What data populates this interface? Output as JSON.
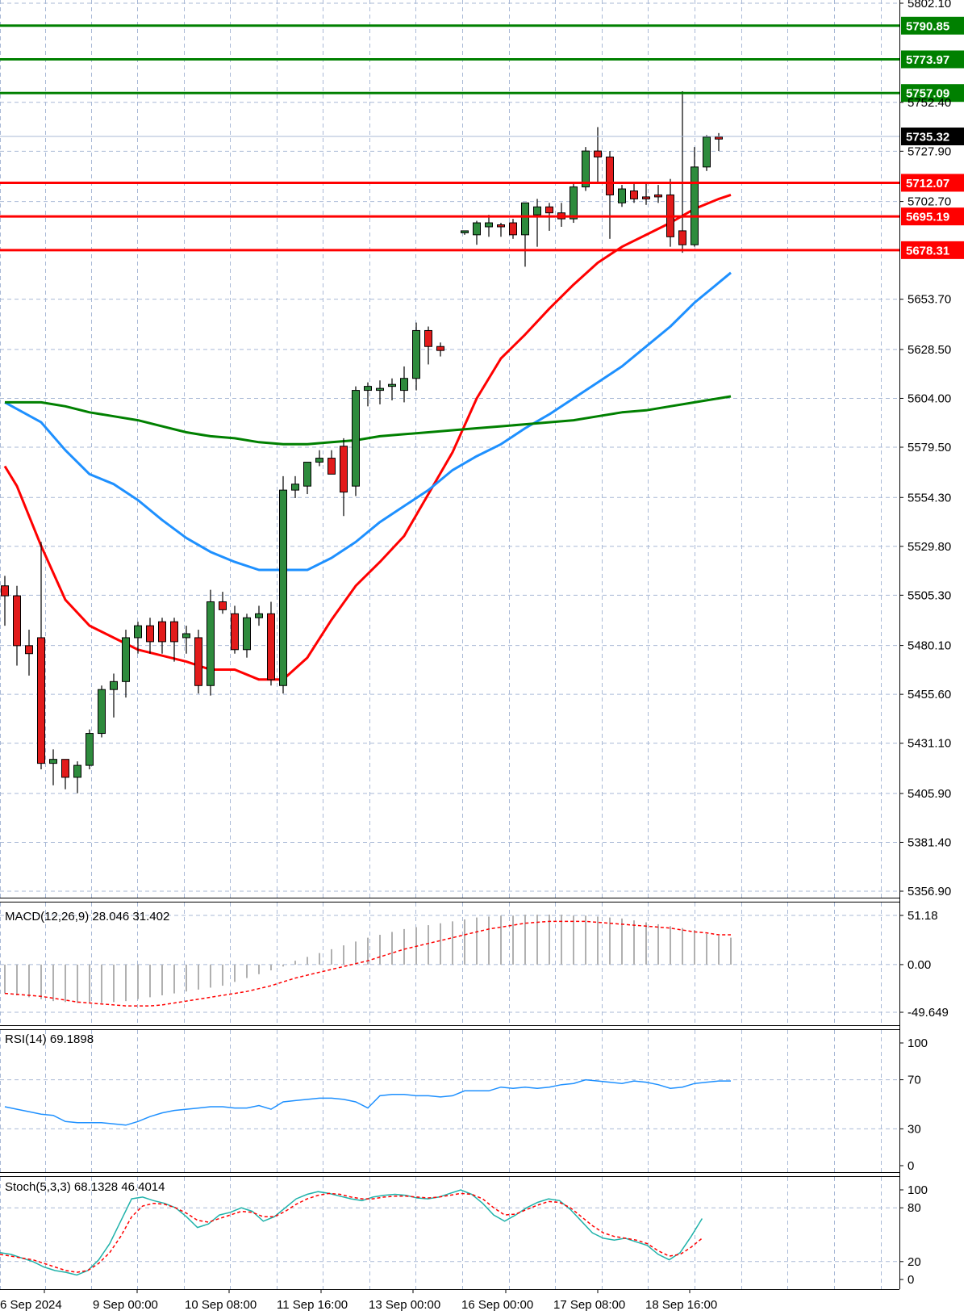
{
  "chart_data": {
    "type": "candlestick",
    "price_axis": {
      "ylim": [
        5356.9,
        5802.1
      ],
      "ticks": [
        "5802.10",
        "5752.40",
        "5727.90",
        "5702.70",
        "5653.70",
        "5628.50",
        "5604.00",
        "5579.50",
        "5554.30",
        "5529.80",
        "5505.30",
        "5480.10",
        "5455.60",
        "5431.10",
        "5405.90",
        "5381.40",
        "5356.90"
      ]
    },
    "current_price": "5735.32",
    "levels": [
      {
        "value": "5790.85",
        "color": "#008000"
      },
      {
        "value": "5773.97",
        "color": "#008000"
      },
      {
        "value": "5757.09",
        "color": "#008000"
      },
      {
        "value": "5712.07",
        "color": "#ff0000"
      },
      {
        "value": "5695.19",
        "color": "#ff0000"
      },
      {
        "value": "5678.31",
        "color": "#ff0000"
      }
    ],
    "time_axis": [
      "6 Sep 2024",
      "9 Sep 00:00",
      "10 Sep 08:00",
      "11 Sep 16:00",
      "13 Sep 00:00",
      "16 Sep 00:00",
      "17 Sep 08:00",
      "18 Sep 16:00"
    ],
    "candle_start_index": -1,
    "candles": [
      [
        5510,
        5515,
        5490,
        5505
      ],
      [
        5505,
        5510,
        5470,
        5480
      ],
      [
        5480,
        5488,
        5465,
        5476
      ],
      [
        5484,
        5532,
        5418,
        5421
      ],
      [
        5421,
        5428,
        5410,
        5423
      ],
      [
        5423,
        5423,
        5408,
        5414
      ],
      [
        5414,
        5422,
        5406,
        5420
      ],
      [
        5420,
        5438,
        5418,
        5436
      ],
      [
        5436,
        5460,
        5434,
        5458
      ],
      [
        5458,
        5466,
        5444,
        5462
      ],
      [
        5462,
        5488,
        5454,
        5484
      ],
      [
        5484,
        5492,
        5476,
        5490
      ],
      [
        5490,
        5494,
        5476,
        5482
      ],
      [
        5492,
        5494,
        5476,
        5482
      ],
      [
        5492,
        5494,
        5472,
        5482
      ],
      [
        5484,
        5490,
        5476,
        5486
      ],
      [
        5484,
        5488,
        5456,
        5460
      ],
      [
        5460,
        5508,
        5455,
        5502
      ],
      [
        5502,
        5507,
        5496,
        5498
      ],
      [
        5496,
        5500,
        5476,
        5478
      ],
      [
        5478,
        5496,
        5474,
        5494
      ],
      [
        5494,
        5500,
        5490,
        5496
      ],
      [
        5496,
        5502,
        5460,
        5463
      ],
      [
        5460,
        5565,
        5456,
        5558
      ],
      [
        5558,
        5565,
        5554,
        5561
      ],
      [
        5560,
        5572,
        5556,
        5572
      ],
      [
        5572,
        5578,
        5570,
        5574
      ],
      [
        5574,
        5578,
        5569,
        5566
      ],
      [
        5580,
        5584,
        5545,
        5557
      ],
      [
        5560,
        5610,
        5555,
        5608
      ],
      [
        5608,
        5612,
        5600,
        5610
      ],
      [
        5608,
        5613,
        5601,
        5609
      ],
      [
        5610,
        5614,
        5603,
        5611
      ],
      [
        5608,
        5620,
        5602,
        5614
      ],
      [
        5614,
        5642,
        5608,
        5638
      ],
      [
        5638,
        5640,
        5621,
        5630
      ],
      [
        5630,
        5632,
        5625,
        5628
      ],
      [
        null,
        null,
        null,
        null
      ],
      [
        5687,
        5688,
        5686,
        5688
      ],
      [
        5686,
        5693,
        5681,
        5692
      ],
      [
        5690,
        5696,
        5685,
        5692
      ],
      [
        5691,
        5692,
        5685,
        5690
      ],
      [
        5692,
        5694,
        5684,
        5686
      ],
      [
        5686,
        5702,
        5670,
        5702
      ],
      [
        5696,
        5704,
        5680,
        5700
      ],
      [
        5700,
        5702,
        5688,
        5697
      ],
      [
        5697,
        5702,
        5690,
        5694
      ],
      [
        5694,
        5712,
        5692,
        5710
      ],
      [
        5710,
        5730,
        5708,
        5728
      ],
      [
        5728,
        5740,
        5712,
        5725
      ],
      [
        5725,
        5728,
        5684,
        5706
      ],
      [
        5702,
        5711,
        5700,
        5709
      ],
      [
        5708,
        5712,
        5702,
        5704
      ],
      [
        5705,
        5712,
        5701,
        5704
      ],
      [
        5706,
        5711,
        5702,
        5705
      ],
      [
        5706,
        5714,
        5680,
        5685
      ],
      [
        5688,
        5758,
        5677,
        5681
      ],
      [
        5681,
        5730,
        5680,
        5720
      ],
      [
        5720,
        5736,
        5718,
        5735
      ],
      [
        5735,
        5737,
        5728,
        5734
      ]
    ],
    "moving_averages": [
      {
        "color": "#ff0000",
        "points": [
          [
            -1,
            5570
          ],
          [
            0,
            5560
          ],
          [
            2,
            5530
          ],
          [
            4,
            5503
          ],
          [
            6,
            5490
          ],
          [
            8,
            5484
          ],
          [
            10,
            5478
          ],
          [
            12,
            5475
          ],
          [
            14,
            5472
          ],
          [
            16,
            5468
          ],
          [
            18,
            5468
          ],
          [
            20,
            5463
          ],
          [
            22,
            5463
          ],
          [
            24,
            5474
          ],
          [
            26,
            5493
          ],
          [
            28,
            5510
          ],
          [
            30,
            5522
          ],
          [
            32,
            5535
          ],
          [
            34,
            5556
          ],
          [
            36,
            5577
          ],
          [
            38,
            5604
          ],
          [
            40,
            5624
          ],
          [
            42,
            5636
          ],
          [
            44,
            5649
          ],
          [
            46,
            5661
          ],
          [
            48,
            5672
          ],
          [
            50,
            5680
          ],
          [
            52,
            5686
          ],
          [
            54,
            5692
          ],
          [
            56,
            5699
          ],
          [
            58,
            5704
          ],
          [
            59,
            5706
          ]
        ]
      },
      {
        "color": "#1e90ff",
        "points": [
          [
            -1,
            5602
          ],
          [
            2,
            5592
          ],
          [
            4,
            5578
          ],
          [
            6,
            5566
          ],
          [
            8,
            5561
          ],
          [
            10,
            5553
          ],
          [
            12,
            5543
          ],
          [
            14,
            5534
          ],
          [
            16,
            5527
          ],
          [
            18,
            5522
          ],
          [
            20,
            5518
          ],
          [
            22,
            5518
          ],
          [
            24,
            5518
          ],
          [
            26,
            5524
          ],
          [
            28,
            5532
          ],
          [
            30,
            5542
          ],
          [
            32,
            5550
          ],
          [
            34,
            5558
          ],
          [
            36,
            5568
          ],
          [
            38,
            5575
          ],
          [
            40,
            5581
          ],
          [
            42,
            5589
          ],
          [
            44,
            5596
          ],
          [
            46,
            5604
          ],
          [
            48,
            5612
          ],
          [
            50,
            5620
          ],
          [
            52,
            5630
          ],
          [
            54,
            5640
          ],
          [
            56,
            5652
          ],
          [
            58,
            5662
          ],
          [
            59,
            5667
          ]
        ]
      },
      {
        "color": "#008000",
        "points": [
          [
            -1,
            5602
          ],
          [
            2,
            5602
          ],
          [
            4,
            5600
          ],
          [
            6,
            5597
          ],
          [
            8,
            5595
          ],
          [
            10,
            5593
          ],
          [
            12,
            5590
          ],
          [
            14,
            5587
          ],
          [
            16,
            5585
          ],
          [
            18,
            5584
          ],
          [
            20,
            5582
          ],
          [
            22,
            5581
          ],
          [
            24,
            5581
          ],
          [
            26,
            5582
          ],
          [
            28,
            5583
          ],
          [
            30,
            5585
          ],
          [
            32,
            5586
          ],
          [
            34,
            5587
          ],
          [
            36,
            5588
          ],
          [
            38,
            5589
          ],
          [
            40,
            5590
          ],
          [
            42,
            5591
          ],
          [
            44,
            5592
          ],
          [
            46,
            5593
          ],
          [
            48,
            5595
          ],
          [
            50,
            5597
          ],
          [
            52,
            5598
          ],
          [
            54,
            5600
          ],
          [
            56,
            5602
          ],
          [
            58,
            5604
          ],
          [
            59,
            5605
          ]
        ]
      }
    ],
    "macd": {
      "label": "MACD(12,26,9) 28.046 31.402",
      "ylim": [
        -49.649,
        51.18
      ],
      "ticks": [
        "51.18",
        "0.00",
        "-49.649"
      ],
      "histogram": [
        -30,
        -32,
        -34,
        -36,
        -38,
        -39,
        -40,
        -40,
        -40,
        -39,
        -38,
        -36,
        -34,
        -32,
        -30,
        -28,
        -26,
        -24,
        -22,
        -18,
        -14,
        -10,
        -6,
        -2,
        4,
        8,
        12,
        16,
        20,
        24,
        28,
        31,
        34,
        37,
        39,
        41,
        43,
        45,
        47,
        49,
        50,
        51,
        51,
        52,
        52,
        52,
        52,
        51,
        51,
        50,
        49,
        48,
        46,
        44,
        42,
        40,
        38,
        36,
        32,
        30,
        28
      ],
      "signal": [
        -30,
        -31,
        -32,
        -33,
        -35,
        -37,
        -39,
        -40,
        -41,
        -42,
        -43,
        -43,
        -43,
        -42,
        -40,
        -38,
        -36,
        -34,
        -32,
        -30,
        -28,
        -25,
        -22,
        -18,
        -14,
        -11,
        -8,
        -5,
        -2,
        1,
        4,
        8,
        12,
        16,
        19,
        22,
        25,
        28,
        31,
        34,
        37,
        39,
        41,
        43,
        44,
        45,
        45,
        45,
        45,
        44,
        43,
        42,
        41,
        40,
        39,
        38,
        36,
        34,
        33,
        31,
        31
      ]
    },
    "rsi": {
      "label": "RSI(14) 69.1898",
      "ylim": [
        0,
        100
      ],
      "ticks": [
        "100",
        "70",
        "30",
        "0"
      ],
      "values": [
        48,
        46,
        44,
        42,
        41,
        36,
        35,
        35,
        35,
        34,
        33,
        36,
        40,
        43,
        45,
        46,
        47,
        48,
        48,
        47,
        47,
        49,
        46,
        52,
        53,
        54,
        55,
        55,
        54,
        52,
        47,
        57,
        58,
        58,
        57,
        57,
        56,
        57,
        61,
        61,
        61,
        64,
        63,
        64,
        63,
        64,
        66,
        67,
        70,
        69,
        68,
        67,
        69,
        68,
        66,
        63,
        64,
        67,
        68,
        69,
        69
      ]
    },
    "stoch": {
      "label": "Stoch(5,3,3) 68.1328 46.4014",
      "ylim": [
        0,
        100
      ],
      "ticks": [
        "100",
        "80",
        "20",
        "0"
      ],
      "k": [
        30,
        28,
        24,
        20,
        14,
        10,
        8,
        5,
        10,
        22,
        40,
        65,
        90,
        92,
        88,
        85,
        80,
        70,
        58,
        62,
        72,
        75,
        80,
        76,
        65,
        70,
        80,
        90,
        95,
        98,
        96,
        93,
        90,
        88,
        92,
        94,
        95,
        94,
        91,
        90,
        92,
        96,
        100,
        95,
        85,
        72,
        65,
        72,
        80,
        86,
        90,
        88,
        78,
        65,
        52,
        46,
        44,
        46,
        42,
        38,
        28,
        22,
        30,
        48,
        68
      ],
      "d": [
        28,
        26,
        24,
        22,
        18,
        14,
        10,
        8,
        10,
        18,
        30,
        48,
        70,
        82,
        85,
        84,
        80,
        74,
        66,
        64,
        68,
        72,
        76,
        75,
        70,
        70,
        76,
        84,
        90,
        94,
        96,
        95,
        92,
        90,
        90,
        92,
        93,
        93,
        92,
        91,
        92,
        94,
        96,
        95,
        90,
        80,
        72,
        73,
        78,
        83,
        87,
        86,
        80,
        70,
        60,
        52,
        48,
        46,
        44,
        40,
        32,
        26,
        28,
        36,
        46
      ]
    }
  }
}
